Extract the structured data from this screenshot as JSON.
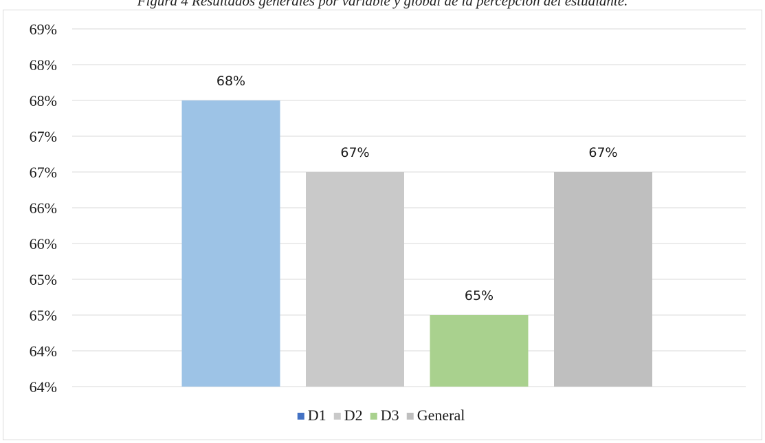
{
  "caption": "Figura 4 Resultados generales por variable y global de la percepción del estudiante.",
  "chart_data": {
    "type": "bar",
    "categories": [
      "D1",
      "D2",
      "D3",
      "General"
    ],
    "values": [
      68,
      67,
      65,
      67
    ],
    "data_labels": [
      "68%",
      "67%",
      "65%",
      "67%"
    ],
    "colors": [
      "#9DC3E6",
      "#C9C9C9",
      "#A9D18E",
      "#BFBFBF"
    ],
    "legend_colors": [
      "#4472C4",
      "#C9C9C9",
      "#A9D18E",
      "#BFBFBF"
    ],
    "y_tick_labels": [
      "64%",
      "64%",
      "65%",
      "65%",
      "66%",
      "66%",
      "67%",
      "67%",
      "68%",
      "68%",
      "69%"
    ],
    "ylim": [
      64,
      69
    ],
    "grid": true,
    "legend_position": "bottom",
    "title": "",
    "xlabel": "",
    "ylabel": ""
  }
}
